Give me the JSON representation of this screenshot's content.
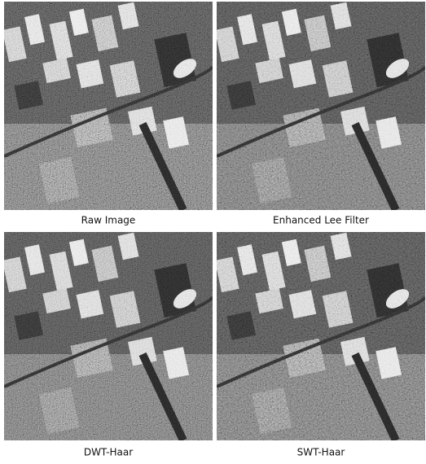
{
  "panels": [
    {
      "caption": "Raw Image"
    },
    {
      "caption": "Enhanced Lee Filter"
    },
    {
      "caption": "DWT-Haar"
    },
    {
      "caption": "SWT-Haar"
    }
  ]
}
